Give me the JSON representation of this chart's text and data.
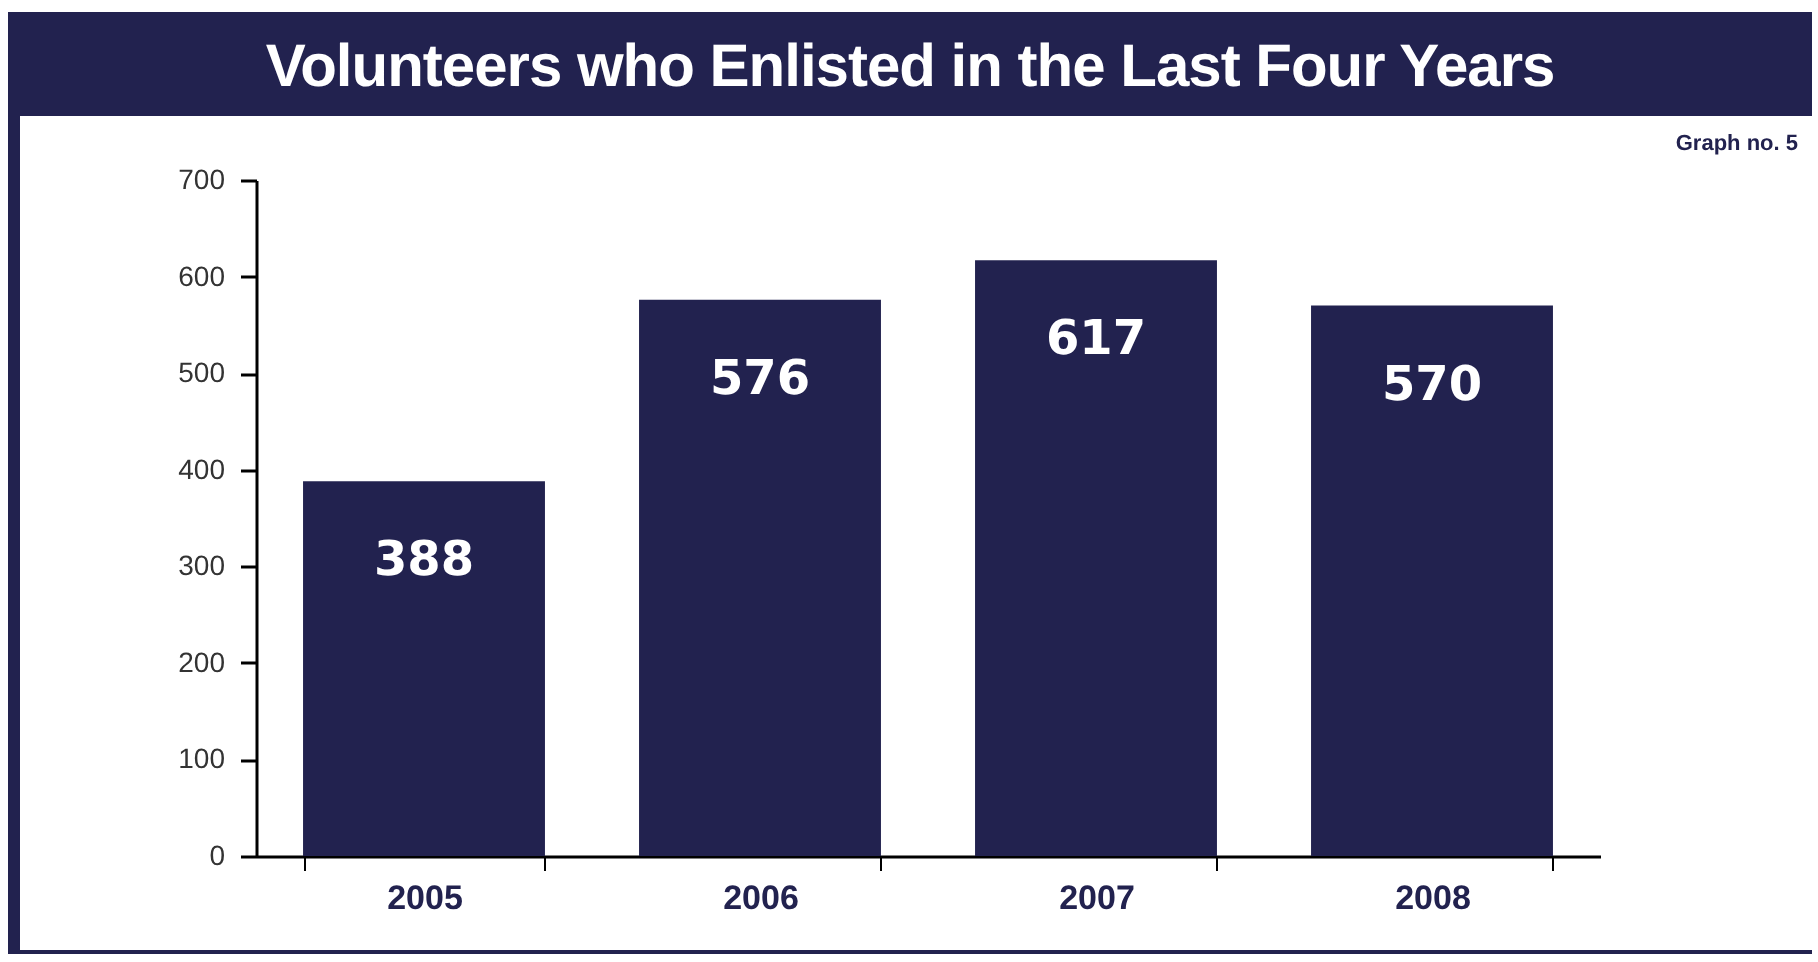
{
  "chart_data": {
    "type": "bar",
    "title": "Volunteers who Enlisted in the Last Four Years",
    "annotations": [
      "Graph no. 5"
    ],
    "categories": [
      "2005",
      "2006",
      "2007",
      "2008"
    ],
    "values": [
      388,
      576,
      617,
      570
    ],
    "color": "#22224f",
    "ylim": [
      0,
      700
    ],
    "yticks": [
      0,
      100,
      200,
      300,
      400,
      500,
      600,
      700
    ],
    "data_labels": true,
    "grid": false
  }
}
